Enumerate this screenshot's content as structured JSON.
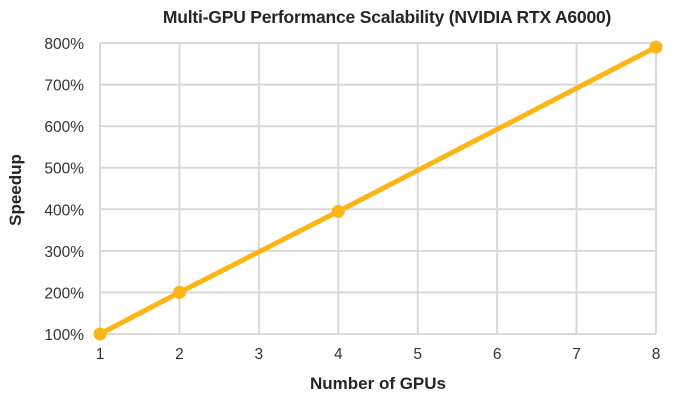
{
  "chart_data": {
    "type": "line",
    "title": "Multi-GPU Performance Scalability (NVIDIA RTX A6000)",
    "xlabel": "Number of GPUs",
    "ylabel": "Speedup",
    "x_ticks": [
      "1",
      "2",
      "3",
      "4",
      "5",
      "6",
      "7",
      "8"
    ],
    "y_ticks": [
      "100%",
      "200%",
      "300%",
      "400%",
      "500%",
      "600%",
      "700%",
      "800%"
    ],
    "xlim": [
      1,
      8
    ],
    "ylim": [
      100,
      800
    ],
    "grid": true,
    "legend": "none",
    "series": [
      {
        "name": "Speedup",
        "color": "#FDB515",
        "x": [
          1,
          2,
          4,
          8
        ],
        "values": [
          100,
          200,
          395,
          790
        ]
      }
    ]
  },
  "colors": {
    "series": "#FDB515",
    "grid": "#D9D9D9",
    "text": "#262626"
  }
}
